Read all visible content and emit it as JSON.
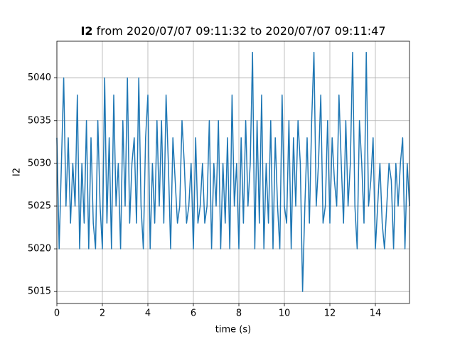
{
  "chart_data": {
    "type": "line",
    "title": [
      "I2",
      "from 2020/07/07 09:11:32 to 2020/07/07 09:11:47"
    ],
    "x_label": "time (s)",
    "y_label": "I2",
    "x": [
      0,
      0.1,
      0.2,
      0.3,
      0.4,
      0.5,
      0.6,
      0.7,
      0.8,
      0.9,
      1,
      1.1,
      1.2,
      1.3,
      1.4,
      1.5,
      1.6,
      1.7,
      1.8,
      1.9,
      2,
      2.1,
      2.2,
      2.3,
      2.4,
      2.5,
      2.6,
      2.7,
      2.8,
      2.9,
      3,
      3.1,
      3.2,
      3.3,
      3.4,
      3.5,
      3.6,
      3.7,
      3.8,
      3.9,
      4,
      4.1,
      4.2,
      4.3,
      4.4,
      4.5,
      4.6,
      4.7,
      4.8,
      4.9,
      5,
      5.1,
      5.2,
      5.3,
      5.4,
      5.5,
      5.6,
      5.7,
      5.8,
      5.9,
      6,
      6.1,
      6.2,
      6.3,
      6.4,
      6.5,
      6.6,
      6.7,
      6.8,
      6.9,
      7,
      7.1,
      7.2,
      7.3,
      7.4,
      7.5,
      7.6,
      7.7,
      7.8,
      7.9,
      8,
      8.1,
      8.2,
      8.3,
      8.4,
      8.5,
      8.6,
      8.7,
      8.8,
      8.9,
      9,
      9.1,
      9.2,
      9.3,
      9.4,
      9.5,
      9.6,
      9.7,
      9.8,
      9.9,
      10,
      10.1,
      10.2,
      10.3,
      10.4,
      10.5,
      10.6,
      10.7,
      10.8,
      10.9,
      11,
      11.1,
      11.2,
      11.3,
      11.4,
      11.5,
      11.6,
      11.7,
      11.8,
      11.9,
      12,
      12.1,
      12.2,
      12.3,
      12.4,
      12.5,
      12.6,
      12.7,
      12.8,
      12.9,
      13,
      13.1,
      13.2,
      13.3,
      13.4,
      13.5,
      13.6,
      13.7,
      13.8,
      13.9,
      14,
      14.1,
      14.2,
      14.3,
      14.4,
      14.5,
      14.6,
      14.7,
      14.8,
      14.9,
      15,
      15.1,
      15.2,
      15.3,
      15.4,
      15.5
    ],
    "series": [
      {
        "color": "#1f77b4",
        "values": [
          5033,
          5020,
          5030,
          5040,
          5025,
          5033,
          5023,
          5030,
          5025,
          5038,
          5020,
          5030,
          5023,
          5035,
          5020,
          5033,
          5023,
          5020,
          5035,
          5025,
          5020,
          5040,
          5023,
          5033,
          5020,
          5038,
          5025,
          5030,
          5020,
          5035,
          5025,
          5040,
          5023,
          5030,
          5033,
          5023,
          5040,
          5025,
          5020,
          5033,
          5038,
          5020,
          5030,
          5023,
          5035,
          5025,
          5035,
          5023,
          5038,
          5030,
          5020,
          5033,
          5028,
          5023,
          5025,
          5035,
          5030,
          5023,
          5025,
          5030,
          5020,
          5033,
          5023,
          5025,
          5030,
          5023,
          5025,
          5035,
          5020,
          5030,
          5025,
          5035,
          5020,
          5030,
          5023,
          5033,
          5020,
          5038,
          5025,
          5030,
          5020,
          5033,
          5023,
          5035,
          5025,
          5030,
          5043,
          5020,
          5035,
          5023,
          5038,
          5020,
          5030,
          5023,
          5035,
          5020,
          5033,
          5025,
          5020,
          5038,
          5025,
          5023,
          5035,
          5020,
          5033,
          5025,
          5035,
          5030,
          5015,
          5025,
          5033,
          5023,
          5035,
          5043,
          5025,
          5030,
          5038,
          5023,
          5025,
          5035,
          5023,
          5033,
          5028,
          5025,
          5038,
          5030,
          5023,
          5035,
          5025,
          5030,
          5043,
          5025,
          5020,
          5035,
          5030,
          5023,
          5043,
          5025,
          5028,
          5033,
          5020,
          5025,
          5030,
          5023,
          5020,
          5025,
          5030,
          5028,
          5020,
          5030,
          5025,
          5030,
          5033,
          5020,
          5030,
          5025
        ]
      }
    ],
    "xlim": [
      0,
      15.5
    ],
    "xticks": [
      0,
      2,
      4,
      6,
      8,
      10,
      12,
      14
    ],
    "ylim": [
      5013.6,
      5044.3
    ],
    "yticks": [
      5015,
      5020,
      5025,
      5030,
      5035,
      5040
    ],
    "grid": true
  }
}
